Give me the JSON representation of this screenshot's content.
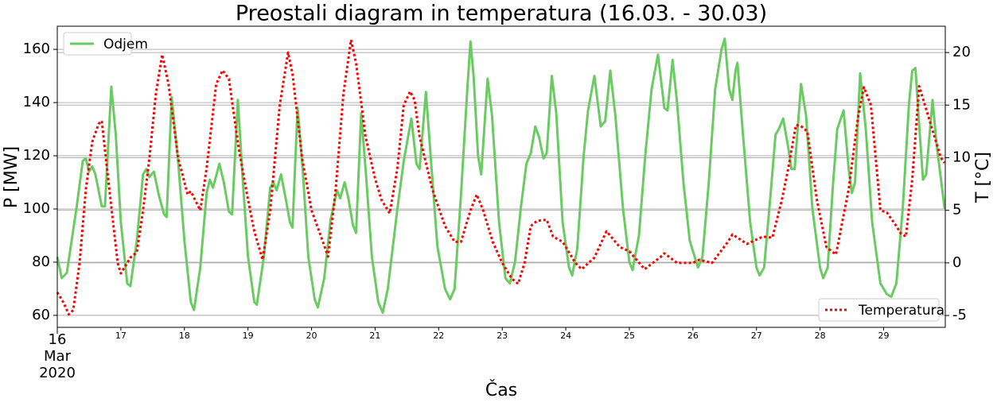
{
  "chart_data": {
    "type": "line",
    "title": "Preostali diagram in temperatura (16.03. - 30.03)",
    "xlabel": "Čas",
    "ylabel": "P [MW]",
    "y2label": "T [°C]",
    "xlim": [
      16,
      29.97
    ],
    "xticks": [
      {
        "value": 16,
        "label": [
          "16",
          "Mar",
          "2020"
        ]
      },
      17,
      18,
      19,
      20,
      21,
      22,
      23,
      24,
      25,
      26,
      27,
      28,
      29
    ],
    "ylim": [
      55.5,
      168.7
    ],
    "yticks": [
      60,
      80,
      100,
      120,
      140,
      160
    ],
    "y2lim": [
      -6.13,
      22.5
    ],
    "y2ticks": [
      -5,
      0,
      5,
      10,
      15,
      20
    ],
    "grid": true,
    "series": [
      {
        "name": "Odjem",
        "color": "#6acb62",
        "style": "solid",
        "legend": "upper left",
        "x": [
          16.0,
          16.07,
          16.15,
          16.3,
          16.4,
          16.45,
          16.5,
          16.55,
          16.6,
          16.7,
          16.75,
          16.85,
          16.92,
          17.0,
          17.1,
          17.15,
          17.25,
          17.35,
          17.4,
          17.45,
          17.52,
          17.6,
          17.68,
          17.72,
          17.8,
          17.9,
          18.0,
          18.1,
          18.15,
          18.25,
          18.35,
          18.4,
          18.45,
          18.55,
          18.62,
          18.7,
          18.75,
          18.84,
          18.92,
          19.0,
          19.1,
          19.14,
          19.25,
          19.35,
          19.4,
          19.45,
          19.52,
          19.6,
          19.66,
          19.7,
          19.78,
          19.86,
          19.95,
          20.05,
          20.1,
          20.2,
          20.3,
          20.4,
          20.45,
          20.52,
          20.58,
          20.65,
          20.7,
          20.78,
          20.86,
          20.95,
          21.05,
          21.12,
          21.2,
          21.35,
          21.45,
          21.57,
          21.65,
          21.7,
          21.8,
          21.88,
          21.98,
          22.1,
          22.18,
          22.25,
          22.35,
          22.45,
          22.5,
          22.55,
          22.62,
          22.67,
          22.77,
          22.84,
          22.95,
          23.05,
          23.12,
          23.2,
          23.3,
          23.38,
          23.45,
          23.52,
          23.58,
          23.65,
          23.7,
          23.78,
          23.85,
          23.95,
          24.05,
          24.1,
          24.18,
          24.28,
          24.35,
          24.45,
          24.55,
          24.62,
          24.7,
          24.78,
          24.9,
          25.0,
          25.05,
          25.15,
          25.25,
          25.35,
          25.45,
          25.55,
          25.6,
          25.68,
          25.75,
          25.85,
          25.95,
          26.08,
          26.15,
          26.25,
          26.35,
          26.45,
          26.5,
          26.57,
          26.62,
          26.67,
          26.7,
          26.78,
          26.9,
          27.0,
          27.05,
          27.12,
          27.22,
          27.3,
          27.35,
          27.42,
          27.5,
          27.55,
          27.6,
          27.7,
          27.78,
          27.88,
          28.0,
          28.05,
          28.12,
          28.2,
          28.27,
          28.37,
          28.45,
          28.5,
          28.55,
          28.63,
          28.72,
          28.82,
          28.95,
          29.05,
          29.12,
          29.2,
          29.3,
          29.4,
          29.45,
          29.5,
          29.55,
          29.62,
          29.67,
          29.77,
          29.83,
          29.96
        ],
        "values": [
          82,
          74,
          76,
          100,
          118,
          119,
          114,
          116,
          113,
          101,
          101,
          146,
          128,
          95,
          72,
          71,
          88,
          113,
          115,
          112,
          114,
          105,
          98,
          97,
          142,
          118,
          88,
          65,
          62,
          78,
          106,
          111,
          108,
          117,
          110,
          99,
          98,
          141,
          110,
          82,
          65,
          64,
          82,
          108,
          110,
          107,
          113,
          103,
          95,
          93,
          138,
          115,
          82,
          66,
          63,
          74,
          96,
          107,
          104,
          110,
          104,
          94,
          91,
          136,
          112,
          82,
          65,
          61,
          70,
          100,
          118,
          134,
          117,
          115,
          144,
          118,
          86,
          70,
          66,
          70,
          105,
          145,
          163,
          150,
          120,
          113,
          149,
          135,
          95,
          74,
          72,
          80,
          102,
          117,
          121,
          131,
          127,
          119,
          121,
          150,
          136,
          95,
          78,
          75,
          85,
          120,
          137,
          150,
          131,
          133,
          152,
          135,
          100,
          80,
          77,
          90,
          120,
          145,
          158,
          138,
          137,
          156,
          140,
          110,
          88,
          78,
          82,
          110,
          145,
          160,
          164,
          145,
          141,
          152,
          155,
          130,
          95,
          78,
          75,
          78,
          105,
          128,
          130,
          134,
          123,
          115,
          115,
          147,
          135,
          100,
          78,
          74,
          78,
          108,
          130,
          137,
          115,
          106,
          110,
          151,
          130,
          95,
          72,
          68,
          67,
          72,
          100,
          140,
          152,
          153,
          135,
          111,
          113,
          141,
          125,
          100
        ]
      },
      {
        "name": "Temperatura",
        "color": "#ff0000",
        "style": "dotted",
        "axis": "y2",
        "legend": "lower right",
        "x": [
          16.0,
          16.1,
          16.18,
          16.25,
          16.35,
          16.45,
          16.55,
          16.65,
          16.7,
          16.8,
          16.95,
          17.0,
          17.15,
          17.25,
          17.35,
          17.45,
          17.55,
          17.65,
          17.75,
          17.9,
          18.05,
          18.1,
          18.25,
          18.35,
          18.5,
          18.6,
          18.7,
          18.85,
          19.0,
          19.1,
          19.23,
          19.35,
          19.5,
          19.63,
          19.7,
          19.85,
          20.0,
          20.15,
          20.26,
          20.38,
          20.5,
          20.62,
          20.7,
          20.85,
          21.0,
          21.1,
          21.23,
          21.35,
          21.45,
          21.55,
          21.62,
          21.7,
          21.9,
          22.1,
          22.25,
          22.35,
          22.5,
          22.6,
          22.7,
          22.85,
          23.0,
          23.15,
          23.25,
          23.35,
          23.45,
          23.55,
          23.7,
          23.8,
          23.95,
          24.15,
          24.25,
          24.45,
          24.64,
          24.85,
          25.0,
          25.24,
          25.5,
          25.55,
          25.75,
          26.0,
          26.1,
          26.3,
          26.55,
          26.62,
          26.7,
          26.85,
          27.1,
          27.25,
          27.4,
          27.5,
          27.62,
          27.7,
          27.8,
          27.95,
          28.1,
          28.25,
          28.45,
          28.6,
          28.69,
          28.8,
          28.95,
          29.05,
          29.2,
          29.27,
          29.35,
          29.45,
          29.56,
          29.65,
          29.75,
          29.9,
          29.96
        ],
        "values": [
          -2.8,
          -3.8,
          -4.9,
          -4.5,
          0,
          7,
          11.5,
          13.2,
          13.5,
          8,
          0,
          -1,
          0.5,
          1,
          5,
          10,
          16,
          19.8,
          17,
          10,
          6.5,
          6.8,
          5,
          9,
          17,
          18.3,
          17.5,
          11,
          6,
          3,
          0.3,
          5,
          15,
          20,
          18,
          10,
          5,
          2.5,
          0.6,
          7,
          16,
          21.2,
          19,
          12,
          8,
          6,
          4.7,
          9,
          15,
          16.3,
          15.5,
          12,
          7,
          3.5,
          2,
          2,
          5,
          6.5,
          5,
          2,
          0,
          -1.5,
          -2,
          0,
          3.5,
          4,
          4.1,
          2.5,
          2,
          0,
          -0.6,
          0.5,
          3,
          1.5,
          1.1,
          -0.6,
          0.6,
          0.9,
          0,
          0,
          0.3,
          0,
          2,
          2.7,
          2.4,
          1.8,
          2.5,
          2.4,
          6,
          9,
          13.1,
          13,
          12.5,
          6,
          1.5,
          0.8,
          7,
          14,
          16.7,
          15,
          5,
          4.8,
          3.5,
          2.8,
          2.5,
          8,
          16.8,
          15,
          13,
          10,
          9.5
        ]
      }
    ]
  }
}
